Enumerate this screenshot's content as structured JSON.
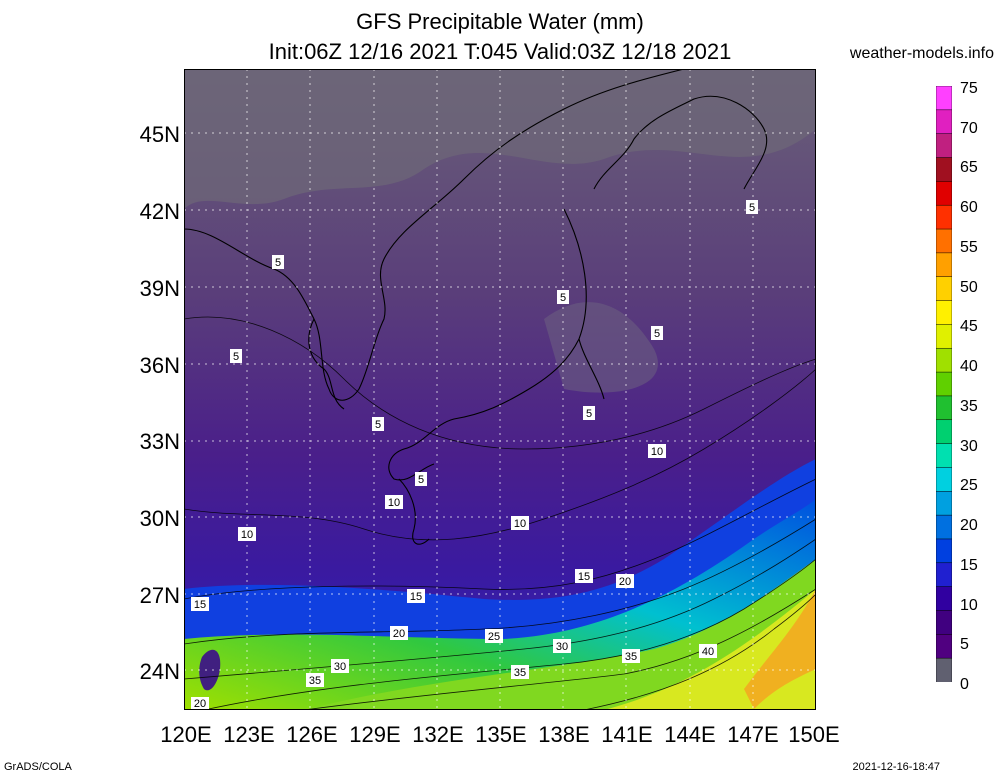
{
  "header": {
    "title": "GFS Precipitable Water (mm)",
    "subtitle": "Init:06Z 12/16 2021 T:045 Valid:03Z 12/18 2021",
    "site": "weather-models.info"
  },
  "axes": {
    "lat_labels": [
      "45N",
      "42N",
      "39N",
      "36N",
      "33N",
      "30N",
      "27N",
      "24N"
    ],
    "lon_labels": [
      "120E",
      "123E",
      "126E",
      "129E",
      "132E",
      "135E",
      "138E",
      "141E",
      "144E",
      "147E",
      "150E"
    ]
  },
  "colorbar": {
    "labels": [
      "75",
      "70",
      "65",
      "60",
      "55",
      "50",
      "45",
      "40",
      "35",
      "30",
      "25",
      "20",
      "15",
      "10",
      "5",
      "0"
    ],
    "colors": [
      "#ff40ff",
      "#e020c0",
      "#c02080",
      "#a01020",
      "#e00000",
      "#ff3000",
      "#ff7000",
      "#ffa000",
      "#ffd000",
      "#fff000",
      "#e0f000",
      "#a0e000",
      "#60d000",
      "#20c030",
      "#00d070",
      "#00e0b0",
      "#00d0e0",
      "#00a0e0",
      "#0070e0",
      "#0040e0",
      "#2020d0",
      "#3000a0",
      "#400080",
      "#500080",
      "#606070"
    ]
  },
  "contour_labels": [
    {
      "text": "5"
    },
    {
      "text": "5"
    },
    {
      "text": "5"
    },
    {
      "text": "5"
    },
    {
      "text": "5"
    },
    {
      "text": "5"
    },
    {
      "text": "5"
    },
    {
      "text": "5"
    },
    {
      "text": "10"
    },
    {
      "text": "10"
    },
    {
      "text": "10"
    },
    {
      "text": "10"
    },
    {
      "text": "15"
    },
    {
      "text": "15"
    },
    {
      "text": "15"
    },
    {
      "text": "20"
    },
    {
      "text": "20"
    },
    {
      "text": "20"
    },
    {
      "text": "25"
    },
    {
      "text": "30"
    },
    {
      "text": "30"
    },
    {
      "text": "35"
    },
    {
      "text": "35"
    },
    {
      "text": "35"
    },
    {
      "text": "40"
    }
  ],
  "footer": {
    "left": "GrADS/COLA",
    "right": "2021-12-16-18:47"
  }
}
